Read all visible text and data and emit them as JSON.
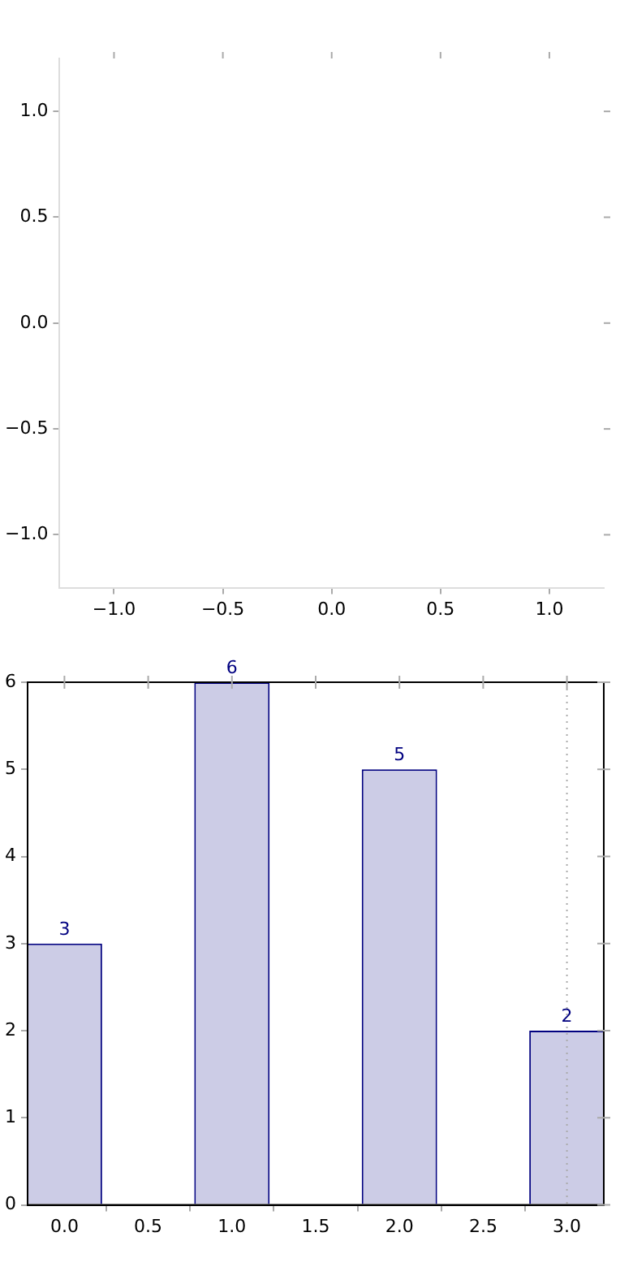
{
  "chart_data": [
    {
      "type": "scatter",
      "xlim": [
        -1.25,
        1.25
      ],
      "ylim": [
        -1.25,
        1.25
      ],
      "xticks": [
        {
          "value": -1,
          "label": "−1.0"
        },
        {
          "value": -0.5,
          "label": "−0.5"
        },
        {
          "value": 0,
          "label": "0.0"
        },
        {
          "value": 0.5,
          "label": "0.5"
        },
        {
          "value": 1,
          "label": "1.0"
        }
      ],
      "yticks": [
        {
          "value": -1,
          "label": "−1.0"
        },
        {
          "value": -0.5,
          "label": "−0.5"
        },
        {
          "value": 0,
          "label": "0.0"
        },
        {
          "value": 0.5,
          "label": "0.5"
        },
        {
          "value": 1,
          "label": "1.0"
        }
      ]
    },
    {
      "type": "bar",
      "x": [
        0,
        1,
        2,
        3
      ],
      "values": [
        3,
        6,
        5,
        2
      ],
      "color": "#cccce6",
      "data_labels": true,
      "xlim": [
        -0.22,
        3.22
      ],
      "ylim": [
        0,
        6
      ],
      "xticks": [
        {
          "value": 0,
          "label": "0.0"
        },
        {
          "value": 0.5,
          "label": "0.5"
        },
        {
          "value": 1,
          "label": "1.0"
        },
        {
          "value": 1.5,
          "label": "1.5"
        },
        {
          "value": 2,
          "label": "2.0"
        },
        {
          "value": 2.5,
          "label": "2.5"
        },
        {
          "value": 3,
          "label": "3.0"
        }
      ],
      "yticks": [
        0,
        1,
        2,
        3,
        4,
        5,
        6
      ],
      "ref_lines": [
        {
          "axis": "x",
          "value": 3,
          "color": "#aaaaaa",
          "line_style": "dotted"
        }
      ]
    }
  ]
}
